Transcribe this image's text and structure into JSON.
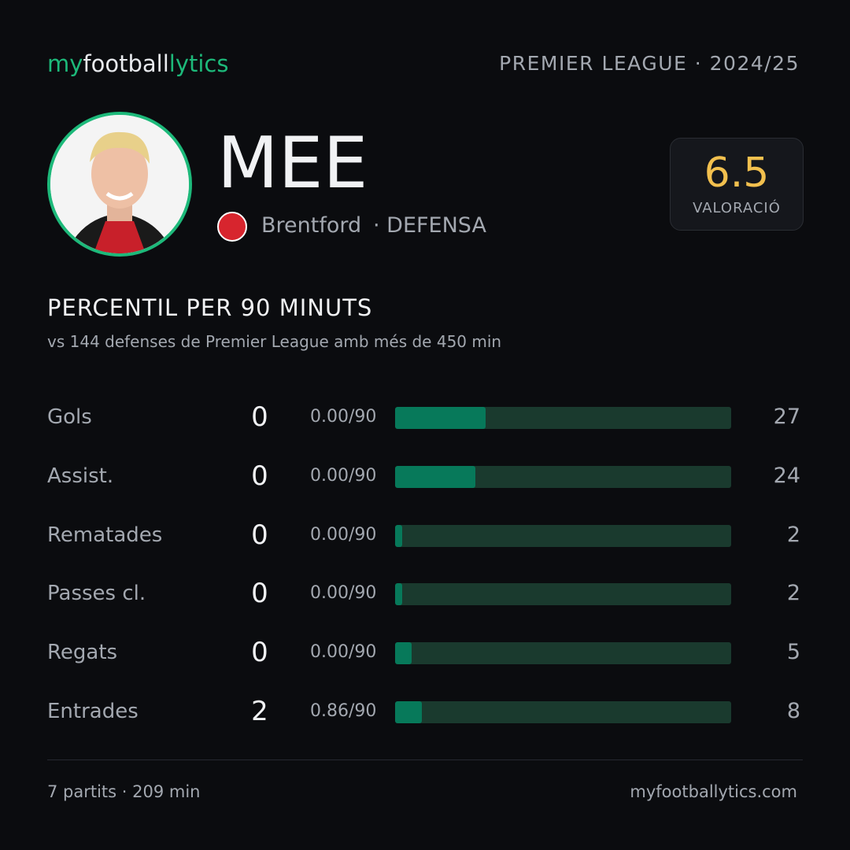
{
  "brand": {
    "my": "my",
    "football": "football",
    "lytics": "lytics"
  },
  "header": {
    "league": "PREMIER LEAGUE · 2024/25"
  },
  "player": {
    "name": "MEE",
    "team": "Brentford",
    "position": "· DEFENSA",
    "rating": 6.5,
    "rating_label": "VALORACIÓ"
  },
  "section": {
    "title": "PERCENTIL PER 90 MINUTS",
    "subtitle": "vs 144 defenses de Premier League amb més de 450 min"
  },
  "stats": {
    "xlim": [
      0,
      100
    ],
    "rows": [
      {
        "label": "Gols",
        "value": 0,
        "per90": "0.00/90",
        "percentile": 27
      },
      {
        "label": "Assist.",
        "value": 0,
        "per90": "0.00/90",
        "percentile": 24
      },
      {
        "label": "Rematades",
        "value": 0,
        "per90": "0.00/90",
        "percentile": 2
      },
      {
        "label": "Passes cl.",
        "value": 0,
        "per90": "0.00/90",
        "percentile": 2
      },
      {
        "label": "Regats",
        "value": 0,
        "per90": "0.00/90",
        "percentile": 5
      },
      {
        "label": "Entrades",
        "value": 2,
        "per90": "0.86/90",
        "percentile": 8
      }
    ]
  },
  "footer": {
    "summary": "7 partits · 209 min",
    "site": "myfootballytics.com"
  }
}
